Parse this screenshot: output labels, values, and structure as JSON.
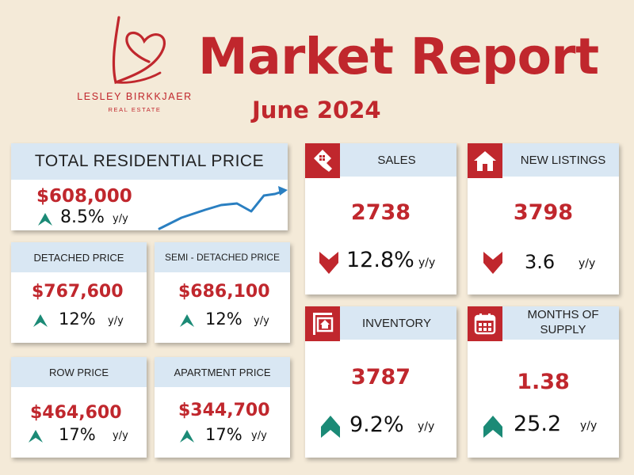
{
  "brand": {
    "name": "LESLEY BIRKKJAER",
    "sub": "REAL ESTATE"
  },
  "report": {
    "title": "Market Report",
    "period": "June 2024"
  },
  "colors": {
    "accent": "#c0272d",
    "header_bg": "#d9e7f3",
    "page_bg": "#f4ead8",
    "up_arrow": "#1b8a76",
    "down_arrow": "#c0272d",
    "trend_line": "#2a7fc1"
  },
  "total": {
    "label": "TOTAL RESIDENTIAL PRICE",
    "price": "$608,000",
    "pct": "8.5%",
    "yy": "y/y",
    "direction": "up",
    "trend_icon": "upward-trend-line"
  },
  "detached": {
    "label": "DETACHED PRICE",
    "price": "$767,600",
    "pct": "12%",
    "yy": "y/y",
    "direction": "up"
  },
  "semi": {
    "label": "SEMI - DETACHED PRICE",
    "price": "$686,100",
    "pct": "12%",
    "yy": "y/y",
    "direction": "up"
  },
  "row": {
    "label": "ROW PRICE",
    "price": "$464,600",
    "pct": "17%",
    "yy": "y/y",
    "direction": "up"
  },
  "apartment": {
    "label": "APARTMENT PRICE",
    "price": "$344,700",
    "pct": "17%",
    "yy": "y/y",
    "direction": "up"
  },
  "sales": {
    "label": "SALES",
    "value": "2738",
    "pct": "12.8%",
    "yy": "y/y",
    "direction": "down",
    "icon": "house-tag-icon"
  },
  "listings": {
    "label": "NEW LISTINGS",
    "value": "3798",
    "pct": "3.6",
    "yy": "y/y",
    "direction": "down",
    "icon": "house-icon"
  },
  "inventory": {
    "label": "INVENTORY",
    "value": "3787",
    "pct": "9.2%",
    "yy": "y/y",
    "direction": "up",
    "icon": "house-sign-icon"
  },
  "supply": {
    "label_line1": "MONTHS OF",
    "label_line2": "SUPPLY",
    "value": "1.38",
    "pct": "25.2",
    "yy": "y/y",
    "direction": "up",
    "icon": "calendar-icon"
  }
}
